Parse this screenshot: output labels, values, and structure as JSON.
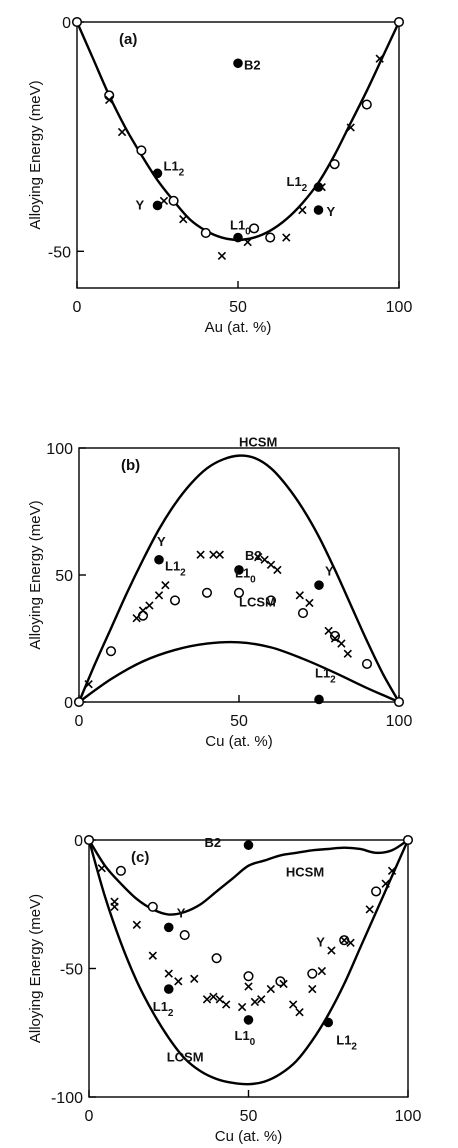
{
  "chart_data": [
    {
      "id": "a",
      "type": "scatter",
      "panel_label": "(a)",
      "xlabel": "Au (at. %)",
      "ylabel": "Alloying Energy (meV)",
      "xlim": [
        0,
        100
      ],
      "ylim": [
        -58,
        0
      ],
      "x_ticks": [
        0,
        50,
        100
      ],
      "y_ticks": [
        0,
        -50
      ],
      "series": [
        {
          "marker": "curve",
          "points": [
            [
              0,
              0
            ],
            [
              5,
              -8
            ],
            [
              10,
              -16
            ],
            [
              15,
              -23
            ],
            [
              20,
              -29
            ],
            [
              25,
              -34.5
            ],
            [
              30,
              -39
            ],
            [
              35,
              -43
            ],
            [
              40,
              -45.5
            ],
            [
              45,
              -47
            ],
            [
              50,
              -47.5
            ],
            [
              55,
              -47
            ],
            [
              60,
              -45.5
            ],
            [
              65,
              -43
            ],
            [
              70,
              -39.5
            ],
            [
              75,
              -35
            ],
            [
              80,
              -29
            ],
            [
              85,
              -22
            ],
            [
              90,
              -15
            ],
            [
              95,
              -7.5
            ],
            [
              100,
              0
            ]
          ]
        },
        {
          "marker": "open-circle",
          "points": [
            [
              0,
              0
            ],
            [
              10,
              -16
            ],
            [
              20,
              -28
            ],
            [
              30,
              -39
            ],
            [
              40,
              -46
            ],
            [
              55,
              -45
            ],
            [
              60,
              -47
            ],
            [
              80,
              -31
            ],
            [
              90,
              -18
            ],
            [
              100,
              0
            ]
          ]
        },
        {
          "marker": "filled-circle",
          "points": [
            [
              50,
              -9
            ],
            [
              25,
              -33
            ],
            [
              25,
              -40
            ],
            [
              50,
              -47
            ],
            [
              75,
              -36
            ],
            [
              75,
              -41
            ]
          ]
        },
        {
          "marker": "cross",
          "points": [
            [
              10,
              -17
            ],
            [
              14,
              -24
            ],
            [
              27,
              -39
            ],
            [
              33,
              -43
            ],
            [
              45,
              -51
            ],
            [
              53,
              -48
            ],
            [
              65,
              -47
            ],
            [
              70,
              -41
            ],
            [
              76,
              -36
            ],
            [
              85,
              -23
            ],
            [
              94,
              -8
            ]
          ]
        }
      ],
      "annotations": [
        {
          "x": 50,
          "y": -9,
          "label": "B2",
          "sub": ""
        },
        {
          "x": 25,
          "y": -33,
          "label": "L1",
          "sub": "2"
        },
        {
          "x": 25,
          "y": -40,
          "label": "Y",
          "sub": ""
        },
        {
          "x": 50,
          "y": -47,
          "label": "L1",
          "sub": "0"
        },
        {
          "x": 75,
          "y": -36,
          "label": "L1",
          "sub": "2"
        },
        {
          "x": 75,
          "y": -41,
          "label": "Y",
          "sub": ""
        }
      ]
    },
    {
      "id": "b",
      "type": "scatter",
      "panel_label": "(b)",
      "xlabel": "Cu (at. %)",
      "ylabel": "Alloying Energy (meV)",
      "xlim": [
        0,
        100
      ],
      "ylim": [
        0,
        100
      ],
      "x_ticks": [
        0,
        50,
        100
      ],
      "y_ticks": [
        0,
        50,
        100
      ],
      "series": [
        {
          "name": "HCSM",
          "marker": "curve",
          "points": [
            [
              0,
              0
            ],
            [
              5,
              15
            ],
            [
              10,
              29
            ],
            [
              15,
              43
            ],
            [
              20,
              56
            ],
            [
              25,
              68
            ],
            [
              30,
              78
            ],
            [
              35,
              86
            ],
            [
              40,
              92
            ],
            [
              45,
              95.5
            ],
            [
              50,
              97
            ],
            [
              55,
              96
            ],
            [
              60,
              92
            ],
            [
              65,
              85
            ],
            [
              70,
              76
            ],
            [
              75,
              65
            ],
            [
              80,
              52
            ],
            [
              85,
              38
            ],
            [
              90,
              24
            ],
            [
              95,
              11
            ],
            [
              100,
              0
            ]
          ]
        },
        {
          "name": "LCSM",
          "marker": "curve",
          "points": [
            [
              0,
              0
            ],
            [
              10,
              9
            ],
            [
              20,
              16
            ],
            [
              30,
              20.5
            ],
            [
              40,
              23
            ],
            [
              50,
              23.5
            ],
            [
              60,
              21.5
            ],
            [
              70,
              17
            ],
            [
              80,
              11.5
            ],
            [
              90,
              5.5
            ],
            [
              100,
              0
            ]
          ]
        },
        {
          "marker": "open-circle",
          "points": [
            [
              0,
              0
            ],
            [
              10,
              20
            ],
            [
              20,
              34
            ],
            [
              30,
              40
            ],
            [
              40,
              43
            ],
            [
              50,
              43
            ],
            [
              60,
              40
            ],
            [
              70,
              35
            ],
            [
              80,
              26
            ],
            [
              90,
              15
            ],
            [
              100,
              0
            ]
          ]
        },
        {
          "marker": "filled-circle",
          "points": [
            [
              25,
              56
            ],
            [
              50,
              52
            ],
            [
              75,
              46
            ],
            [
              75,
              1
            ]
          ]
        },
        {
          "marker": "cross",
          "points": [
            [
              3,
              7
            ],
            [
              18,
              33
            ],
            [
              20,
              36
            ],
            [
              22,
              38
            ],
            [
              25,
              42
            ],
            [
              27,
              46
            ],
            [
              38,
              58
            ],
            [
              42,
              58
            ],
            [
              44,
              58
            ],
            [
              56,
              57
            ],
            [
              58,
              56
            ],
            [
              60,
              54
            ],
            [
              62,
              52
            ],
            [
              69,
              42
            ],
            [
              72,
              39
            ],
            [
              78,
              28
            ],
            [
              80,
              25
            ],
            [
              82,
              23
            ],
            [
              84,
              19
            ]
          ]
        }
      ],
      "annotations": [
        {
          "x": 50,
          "y": 92,
          "label": "HCSM",
          "sub": ""
        },
        {
          "x": 50,
          "y": 29,
          "label": "LCSM",
          "sub": ""
        },
        {
          "x": 25,
          "y": 56,
          "label": "Y",
          "sub": ""
        },
        {
          "x": 25,
          "y": 51,
          "label": "L1",
          "sub": "2"
        },
        {
          "x": 50,
          "y": 52,
          "label": "B2",
          "sub": ""
        },
        {
          "x": 50,
          "y": 45,
          "label": "L1",
          "sub": "0"
        },
        {
          "x": 75,
          "y": 49,
          "label": "Y",
          "sub": ""
        },
        {
          "x": 75,
          "y": 5,
          "label": "L1",
          "sub": "2"
        }
      ]
    },
    {
      "id": "c",
      "type": "scatter",
      "panel_label": "(c)",
      "xlabel": "Cu (at. %)",
      "ylabel": "Alloying Energy (meV)",
      "xlim": [
        0,
        100
      ],
      "ylim": [
        -100,
        0
      ],
      "x_ticks": [
        0,
        50,
        100
      ],
      "y_ticks": [
        0,
        -50,
        -100
      ],
      "series": [
        {
          "name": "HCSM",
          "marker": "curve",
          "points": [
            [
              0,
              0
            ],
            [
              5,
              -10
            ],
            [
              10,
              -17
            ],
            [
              15,
              -23
            ],
            [
              20,
              -27
            ],
            [
              25,
              -29
            ],
            [
              30,
              -28
            ],
            [
              35,
              -25
            ],
            [
              40,
              -20
            ],
            [
              45,
              -15
            ],
            [
              50,
              -10
            ],
            [
              55,
              -8
            ],
            [
              60,
              -6
            ],
            [
              65,
              -5
            ],
            [
              70,
              -4
            ],
            [
              75,
              -3.5
            ],
            [
              80,
              -3
            ],
            [
              85,
              -3.5
            ],
            [
              90,
              -5
            ],
            [
              95,
              -4
            ],
            [
              100,
              0
            ]
          ]
        },
        {
          "name": "LCSM",
          "marker": "curve",
          "points": [
            [
              0,
              0
            ],
            [
              5,
              -22
            ],
            [
              10,
              -40
            ],
            [
              15,
              -55
            ],
            [
              20,
              -67
            ],
            [
              25,
              -77
            ],
            [
              30,
              -85
            ],
            [
              35,
              -90
            ],
            [
              40,
              -93
            ],
            [
              45,
              -94.5
            ],
            [
              50,
              -95
            ],
            [
              55,
              -94
            ],
            [
              60,
              -91
            ],
            [
              65,
              -86
            ],
            [
              70,
              -78
            ],
            [
              75,
              -68
            ],
            [
              80,
              -56
            ],
            [
              85,
              -42
            ],
            [
              90,
              -28
            ],
            [
              95,
              -14
            ],
            [
              100,
              0
            ]
          ]
        },
        {
          "marker": "open-circle",
          "points": [
            [
              0,
              0
            ],
            [
              10,
              -12
            ],
            [
              20,
              -26
            ],
            [
              30,
              -37
            ],
            [
              40,
              -46
            ],
            [
              50,
              -53
            ],
            [
              60,
              -55
            ],
            [
              70,
              -52
            ],
            [
              80,
              -39
            ],
            [
              90,
              -20
            ],
            [
              100,
              0
            ]
          ]
        },
        {
          "marker": "filled-circle",
          "points": [
            [
              50,
              -2
            ],
            [
              25,
              -34
            ],
            [
              25,
              -58
            ],
            [
              50,
              -70
            ],
            [
              75,
              -71
            ]
          ]
        },
        {
          "marker": "cross",
          "points": [
            [
              4,
              -11
            ],
            [
              8,
              -24
            ],
            [
              8,
              -26
            ],
            [
              15,
              -33
            ],
            [
              20,
              -45
            ],
            [
              25,
              -52
            ],
            [
              28,
              -55
            ],
            [
              33,
              -54
            ],
            [
              37,
              -62
            ],
            [
              39,
              -61
            ],
            [
              41,
              -62
            ],
            [
              43,
              -64
            ],
            [
              48,
              -65
            ],
            [
              50,
              -57
            ],
            [
              52,
              -63
            ],
            [
              54,
              -62
            ],
            [
              57,
              -58
            ],
            [
              61,
              -56
            ],
            [
              64,
              -64
            ],
            [
              66,
              -67
            ],
            [
              70,
              -58
            ],
            [
              73,
              -51
            ],
            [
              76,
              -43
            ],
            [
              80,
              -39
            ],
            [
              82,
              -40
            ],
            [
              88,
              -27
            ],
            [
              93,
              -17
            ],
            [
              95,
              -12
            ]
          ]
        }
      ],
      "annotations": [
        {
          "x": 50,
          "y": -2,
          "label": "B2",
          "sub": ""
        },
        {
          "x": 68,
          "y": -15,
          "label": "HCSM",
          "sub": ""
        },
        {
          "x": 25,
          "y": -34,
          "label": "Y",
          "sub": ""
        },
        {
          "x": 25,
          "y": -58,
          "label": "L1",
          "sub": "2"
        },
        {
          "x": 50,
          "y": -70,
          "label": "L1",
          "sub": "0"
        },
        {
          "x": 75,
          "y": -43,
          "label": "Y",
          "sub": ""
        },
        {
          "x": 75,
          "y": -71,
          "label": "L1",
          "sub": "2"
        },
        {
          "x": 30,
          "y": -90,
          "label": "LCSM",
          "sub": ""
        }
      ]
    }
  ]
}
